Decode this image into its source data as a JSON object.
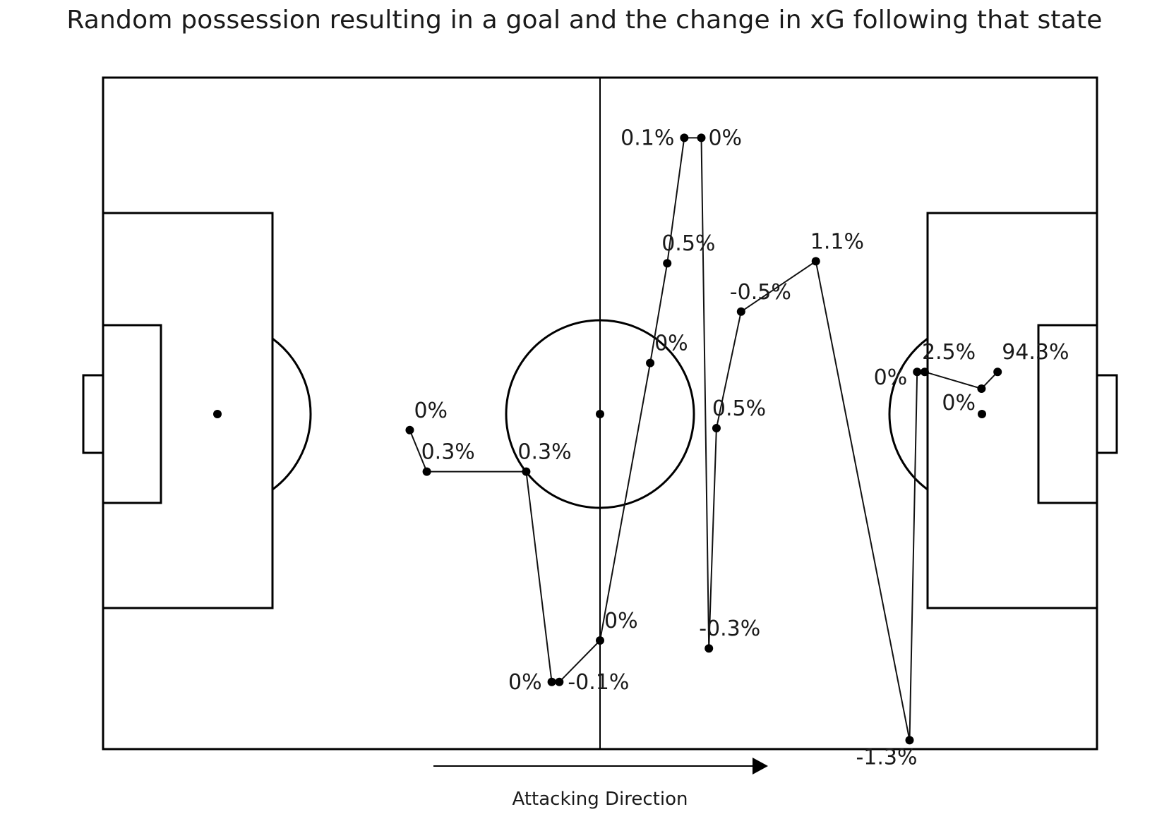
{
  "title": "Random possession resulting in a goal and the change in xG following that state",
  "chart_data": {
    "type": "scatter",
    "title": "Random possession resulting in a goal and the change in xG following that state",
    "xlim": [
      0,
      105
    ],
    "ylim": [
      0,
      68
    ],
    "grid": false,
    "connected": true,
    "points": [
      {
        "x": 32.4,
        "y": 32.3,
        "label": "0%"
      },
      {
        "x": 34.2,
        "y": 28.1,
        "label": "0.3%"
      },
      {
        "x": 44.7,
        "y": 28.1,
        "label": "0.3%"
      },
      {
        "x": 47.4,
        "y": 6.8,
        "label": "0%"
      },
      {
        "x": 48.2,
        "y": 6.8,
        "label": "-0.1%"
      },
      {
        "x": 52.5,
        "y": 11.0,
        "label": "0%"
      },
      {
        "x": 57.8,
        "y": 39.1,
        "label": "0%"
      },
      {
        "x": 59.6,
        "y": 49.2,
        "label": "0.5%"
      },
      {
        "x": 61.4,
        "y": 61.9,
        "label": "0.1%"
      },
      {
        "x": 63.2,
        "y": 61.9,
        "label": "0%"
      },
      {
        "x": 64.0,
        "y": 10.2,
        "label": "-0.3%"
      },
      {
        "x": 64.8,
        "y": 32.5,
        "label": "0.5%"
      },
      {
        "x": 67.4,
        "y": 44.3,
        "label": "-0.5%"
      },
      {
        "x": 75.3,
        "y": 49.4,
        "label": "1.1%"
      },
      {
        "x": 85.2,
        "y": 0.9,
        "label": "-1.3%"
      },
      {
        "x": 86.0,
        "y": 38.2,
        "label": "0%"
      },
      {
        "x": 86.8,
        "y": 38.2,
        "label": "2.5%"
      },
      {
        "x": 92.8,
        "y": 36.5,
        "label": "0%"
      },
      {
        "x": 94.5,
        "y": 38.2,
        "label": "94.3%"
      }
    ]
  },
  "direction_label": "Attacking Direction",
  "colors": {
    "lines": "#000000",
    "text": "#1a1a1a",
    "background": "#ffffff"
  }
}
